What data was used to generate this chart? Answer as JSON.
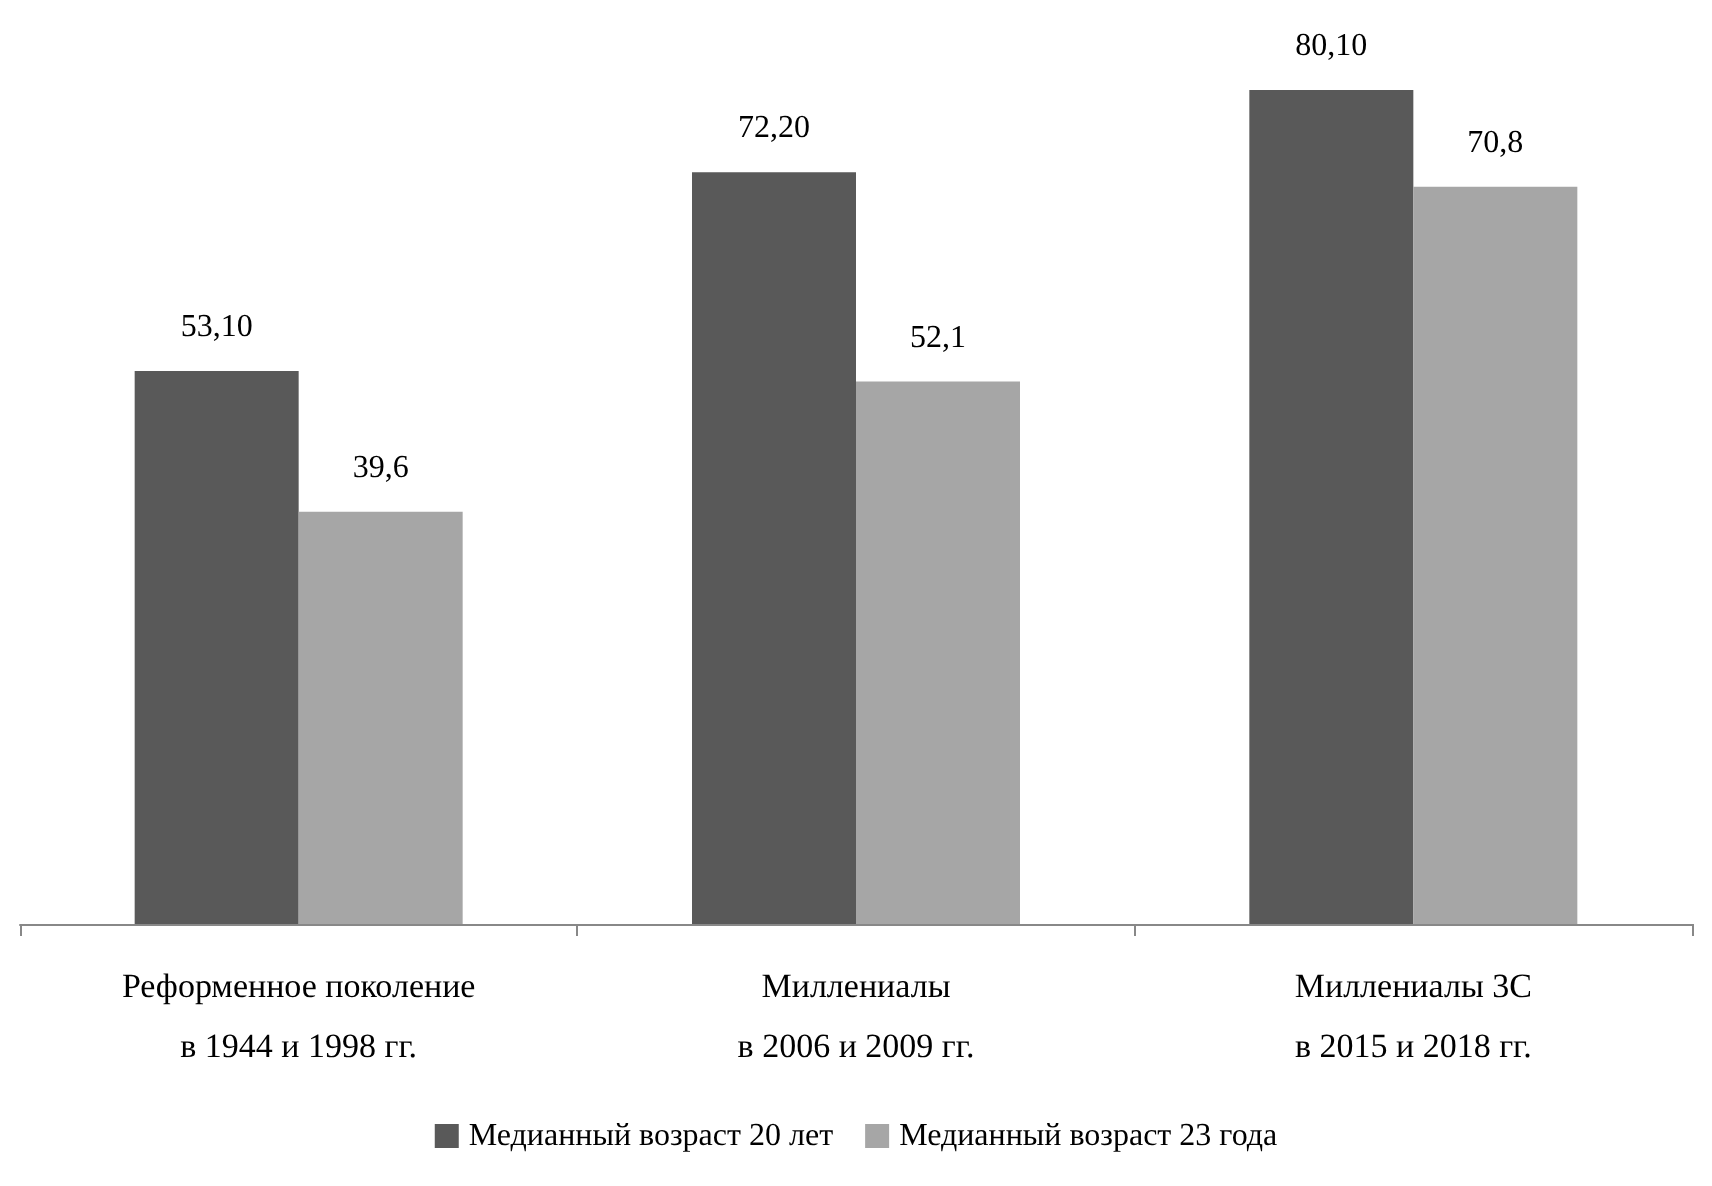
{
  "chart_data": {
    "type": "bar",
    "categories": [
      "Реформенное поколение\nв 1944 и 1998 гг.",
      "Миллениалы\nв 2006 и 2009 гг.",
      "Миллениалы 3С\nв 2015 и 2018 гг."
    ],
    "series": [
      {
        "name": "Медианный возраст 20 лет",
        "color": "#595959",
        "values": [
          53.1,
          72.2,
          80.1
        ],
        "value_labels": [
          "53,10",
          "72,20",
          "80,10"
        ]
      },
      {
        "name": "Медианный возраст 23 года",
        "color": "#a6a6a6",
        "values": [
          39.6,
          52.1,
          70.8
        ],
        "value_labels": [
          "39,6",
          "52,1",
          "70,8"
        ]
      }
    ],
    "legend": "bottom",
    "grid": false
  }
}
